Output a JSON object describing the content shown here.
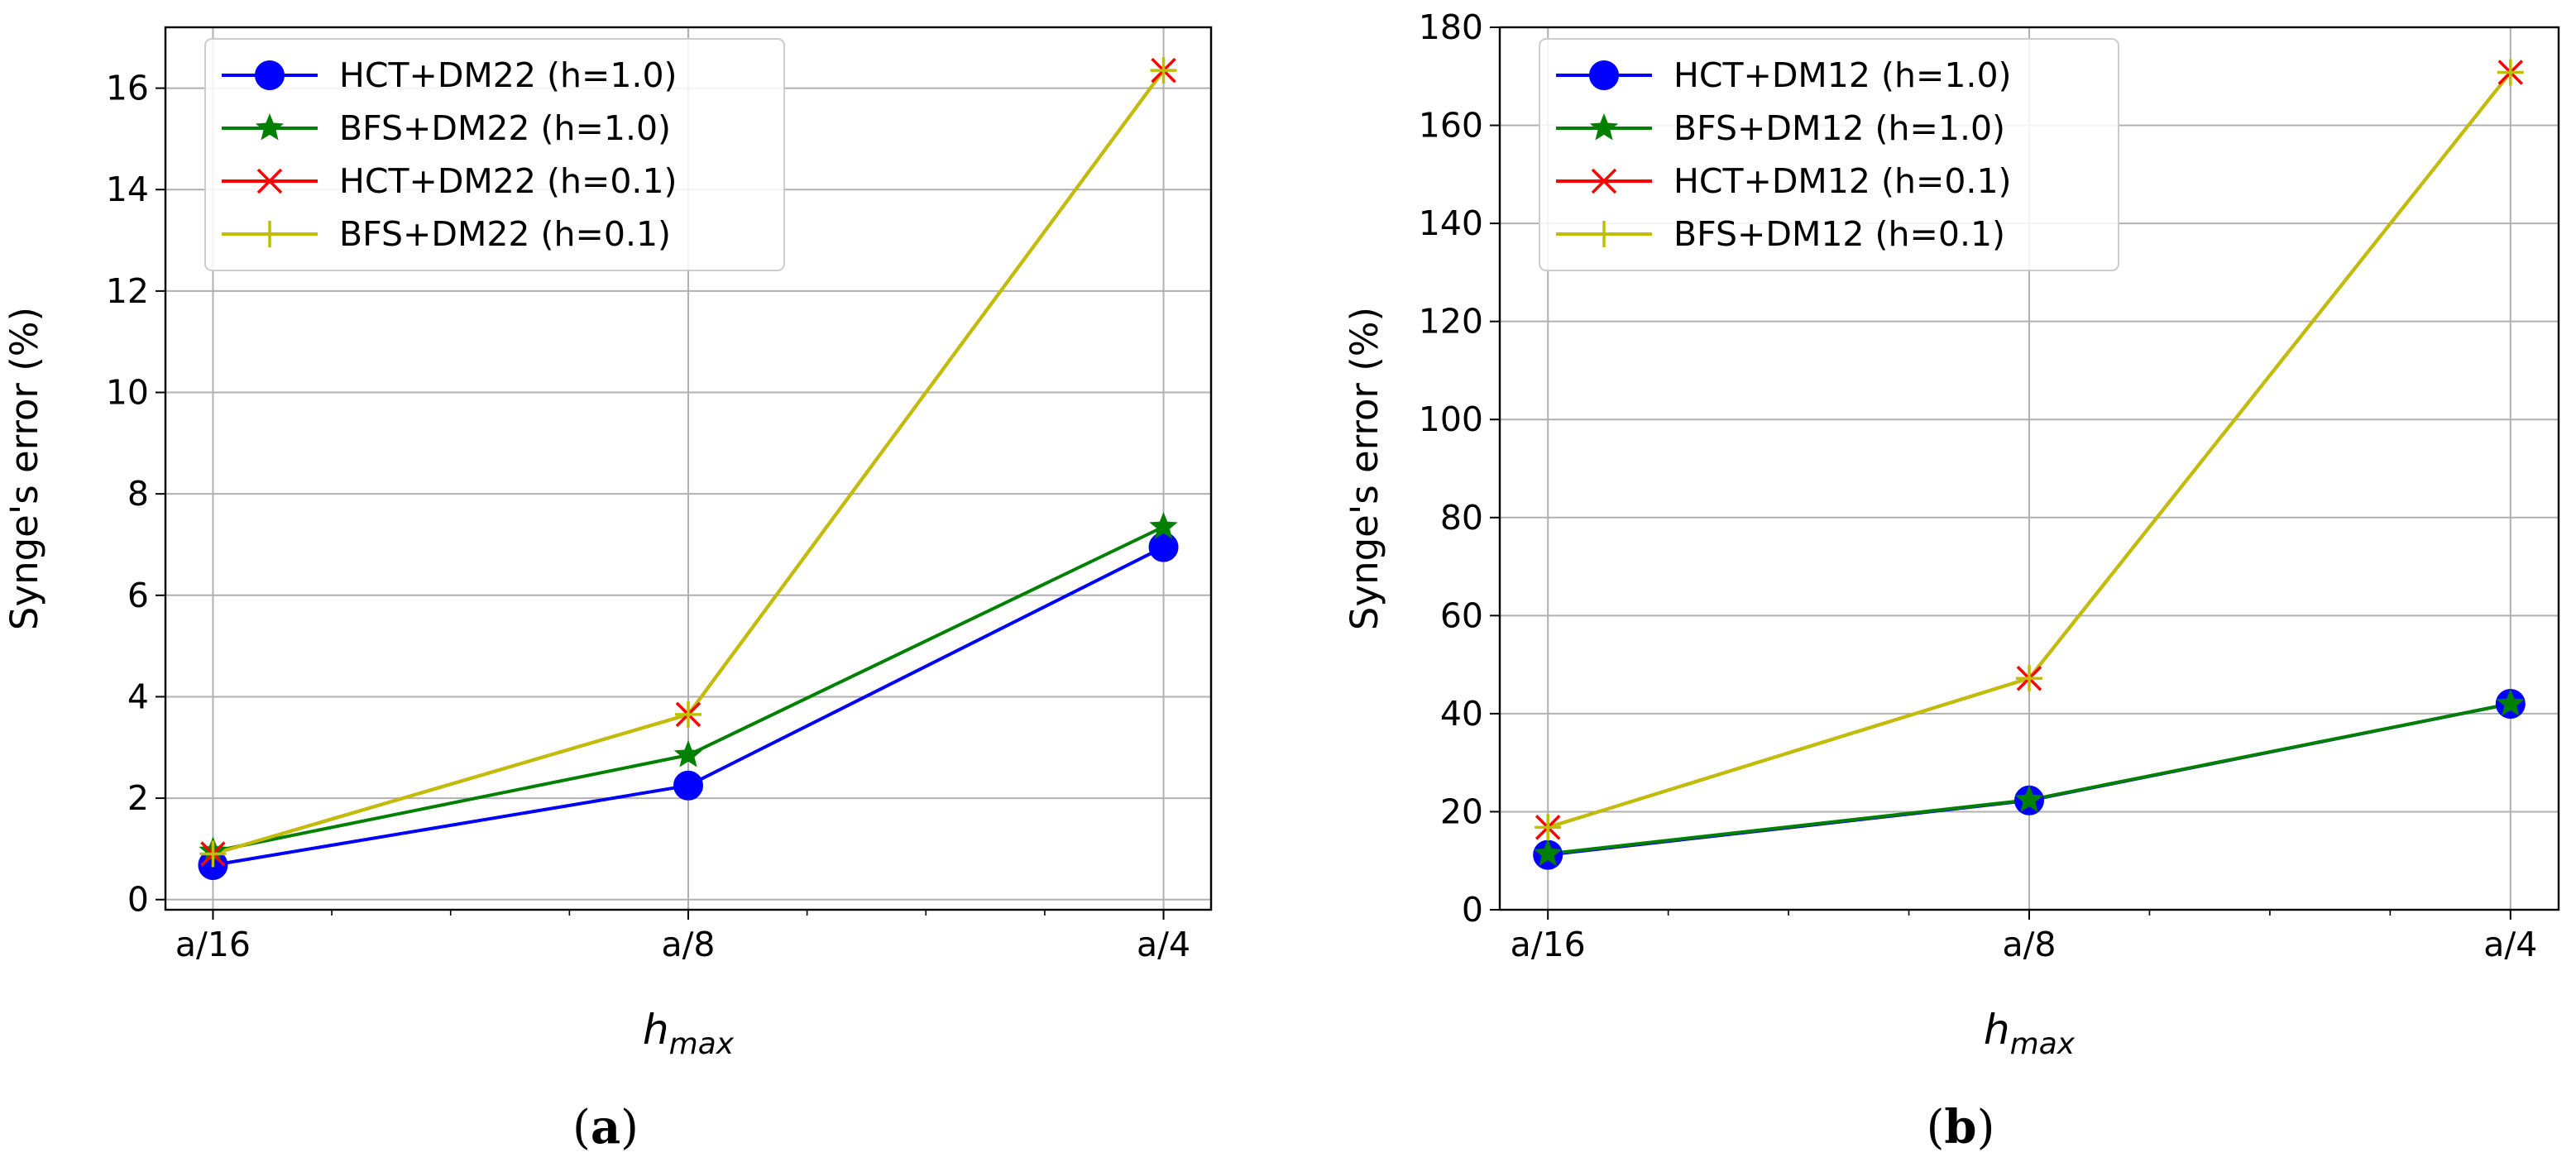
{
  "figure": {
    "panels": [
      {
        "caption": "(a)",
        "letter": "a"
      },
      {
        "caption": "(b)",
        "letter": "b"
      }
    ]
  },
  "chart_data": [
    {
      "type": "line",
      "panel": "a",
      "title": "",
      "xlabel": "h_max",
      "xlabel_main": "h",
      "xlabel_sub": "max",
      "ylabel": "Synge's error  (%)",
      "categories": [
        "a/16",
        "a/8",
        "a/4"
      ],
      "x": [
        0,
        2,
        4
      ],
      "xlim": [
        -0.2,
        4.2
      ],
      "ylim": [
        -0.2,
        17.2
      ],
      "yticks": [
        0,
        2,
        4,
        6,
        8,
        10,
        12,
        14,
        16
      ],
      "grid": true,
      "legend_position": "top-left",
      "series": [
        {
          "name": "HCT+DM22 (h=1.0)",
          "color": "#0000ff",
          "marker": "circle",
          "values": [
            0.68,
            2.25,
            6.95
          ]
        },
        {
          "name": "BFS+DM22 (h=1.0)",
          "color": "#008000",
          "marker": "star",
          "values": [
            0.95,
            2.85,
            7.35
          ]
        },
        {
          "name": "HCT+DM22 (h=0.1)",
          "color": "#ff0000",
          "marker": "x",
          "values": [
            0.9,
            3.65,
            16.35
          ]
        },
        {
          "name": "BFS+DM22 (h=0.1)",
          "color": "#bfbf00",
          "marker": "plus",
          "values": [
            0.9,
            3.65,
            16.35
          ]
        }
      ]
    },
    {
      "type": "line",
      "panel": "b",
      "title": "",
      "xlabel": "h_max",
      "xlabel_main": "h",
      "xlabel_sub": "max",
      "ylabel": "Synge's error  (%)",
      "categories": [
        "a/16",
        "a/8",
        "a/4"
      ],
      "x": [
        0,
        2,
        4
      ],
      "xlim": [
        -0.2,
        4.2
      ],
      "ylim": [
        0,
        180
      ],
      "yticks": [
        0,
        20,
        40,
        60,
        80,
        100,
        120,
        140,
        160,
        180
      ],
      "grid": true,
      "legend_position": "top-left",
      "series": [
        {
          "name": "HCT+DM12 (h=1.0)",
          "color": "#0000ff",
          "marker": "circle",
          "values": [
            11.2,
            22.3,
            42.0
          ]
        },
        {
          "name": "BFS+DM12 (h=1.0)",
          "color": "#008000",
          "marker": "star",
          "values": [
            11.4,
            22.4,
            42.0
          ]
        },
        {
          "name": "HCT+DM12 (h=0.1)",
          "color": "#ff0000",
          "marker": "x",
          "values": [
            16.8,
            47.2,
            170.8
          ]
        },
        {
          "name": "BFS+DM12 (h=0.1)",
          "color": "#bfbf00",
          "marker": "plus",
          "values": [
            16.8,
            47.2,
            170.8
          ]
        }
      ]
    }
  ]
}
